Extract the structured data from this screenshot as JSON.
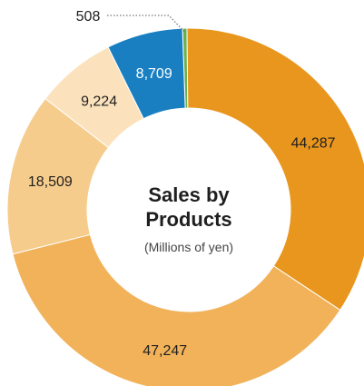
{
  "chart_data": {
    "type": "pie",
    "title": [
      "Sales by",
      "Products"
    ],
    "subtitle": "(Millions of yen)",
    "slices": [
      {
        "value": 508,
        "label": "508",
        "color": "#6ab04c"
      },
      {
        "value": 44287,
        "label": "44,287",
        "color": "#e8961d"
      },
      {
        "value": 47247,
        "label": "47,247",
        "color": "#f1b25a"
      },
      {
        "value": 18509,
        "label": "18,509",
        "color": "#f6cc8c"
      },
      {
        "value": 9224,
        "label": "9,224",
        "color": "#fbe2bd"
      },
      {
        "value": 8709,
        "label": "8,709",
        "color": "#1a7fc1"
      }
    ]
  }
}
